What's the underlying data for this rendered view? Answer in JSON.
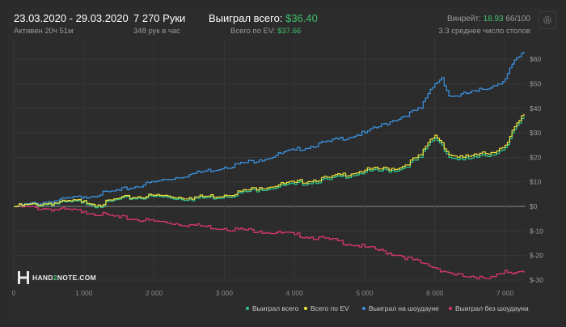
{
  "header": {
    "date_range": "23.03.2020 - 29.03.2020",
    "active": "Активен 20ч 51м",
    "hands": "7 270 Руки",
    "hands_per_hour": "348 рук в час",
    "won_label": "Выиграл всего:",
    "won_value": "$36.40",
    "ev_label": "Всего по EV:",
    "ev_value": "$37.66",
    "winrate_label": "Винрейт:",
    "winrate_value": "18.93",
    "winrate_rest": "66/100",
    "tables": "3.3 среднее число столов"
  },
  "logo": {
    "text_a": "HAND",
    "text_b": "2",
    "text_c": "NOTE.COM"
  },
  "colors": {
    "won": "#2fc08a",
    "ev": "#f0e43a",
    "showdown": "#3a8fdb",
    "nonshowdown": "#d8376c",
    "grid": "#3a3a3a",
    "zero": "#8a8a8a"
  },
  "chart_data": {
    "type": "line",
    "xlim": [
      0,
      7270
    ],
    "ylim": [
      -30,
      65
    ],
    "x_ticks": [
      0,
      1000,
      2000,
      3000,
      4000,
      5000,
      6000,
      7000
    ],
    "x_tick_labels": [
      "0",
      "1 000",
      "2 000",
      "3 000",
      "4 000",
      "5 000",
      "6 000",
      "7 000"
    ],
    "y_ticks": [
      60,
      50,
      40,
      30,
      20,
      10,
      0,
      -10,
      -20,
      -30
    ],
    "y_tick_labels": [
      "$60",
      "$50",
      "$40",
      "$30",
      "$20",
      "$10",
      "$0",
      "$-10",
      "$-20",
      "$-30"
    ],
    "grid": true,
    "legend_position": "bottom-right",
    "series": [
      {
        "name": "Выиграл без шоудауна",
        "x": [
          0,
          500,
          1000,
          1500,
          2000,
          2500,
          3000,
          3500,
          4000,
          4500,
          5000,
          5500,
          5800,
          6000,
          6200,
          6400,
          6600,
          6800,
          7000,
          7100,
          7270
        ],
        "y": [
          0,
          -1,
          -2,
          -4.5,
          -6,
          -7.5,
          -9,
          -10,
          -11.5,
          -13.5,
          -16.5,
          -20,
          -23,
          -25,
          -27,
          -28.5,
          -29.5,
          -28.5,
          -26,
          -27.5,
          -27
        ]
      },
      {
        "name": "Выиграл на шоудауне",
        "x": [
          0,
          500,
          1000,
          1500,
          2000,
          2500,
          3000,
          3500,
          4000,
          4500,
          5000,
          5400,
          5800,
          5900,
          6000,
          6100,
          6200,
          6300,
          6600,
          6900,
          7000,
          7100,
          7200,
          7270
        ],
        "y": [
          0,
          2,
          4,
          6.5,
          10,
          13,
          16,
          19,
          23,
          26.5,
          30,
          35,
          40,
          46,
          50,
          52.5,
          45,
          45,
          47,
          50,
          52,
          58,
          61,
          63
        ]
      },
      {
        "name": "Выиграл всего",
        "x": [
          0,
          500,
          1000,
          1200,
          1500,
          2000,
          2500,
          3000,
          3500,
          4000,
          4500,
          5000,
          5500,
          5800,
          5900,
          6000,
          6100,
          6200,
          6400,
          6600,
          6800,
          7000,
          7100,
          7200,
          7270
        ],
        "y": [
          0,
          1,
          2,
          0,
          3,
          4,
          3,
          4,
          7,
          9,
          11,
          14,
          15,
          20,
          25,
          28,
          25,
          20,
          19,
          20,
          21,
          24,
          30,
          34,
          36.4
        ]
      },
      {
        "name": "Всего по EV",
        "x": [
          0,
          500,
          1000,
          1200,
          1500,
          2000,
          2500,
          3000,
          3500,
          4000,
          4500,
          5000,
          5500,
          5800,
          5900,
          6000,
          6100,
          6200,
          6400,
          6600,
          6800,
          7000,
          7100,
          7200,
          7270
        ],
        "y": [
          0,
          1.3,
          2.4,
          0.6,
          3.4,
          4.5,
          3.6,
          4.6,
          7.7,
          9.8,
          11.8,
          14.8,
          15.8,
          21,
          26,
          29,
          26,
          21,
          20,
          21,
          22,
          25,
          31,
          35,
          37.66
        ]
      }
    ]
  }
}
